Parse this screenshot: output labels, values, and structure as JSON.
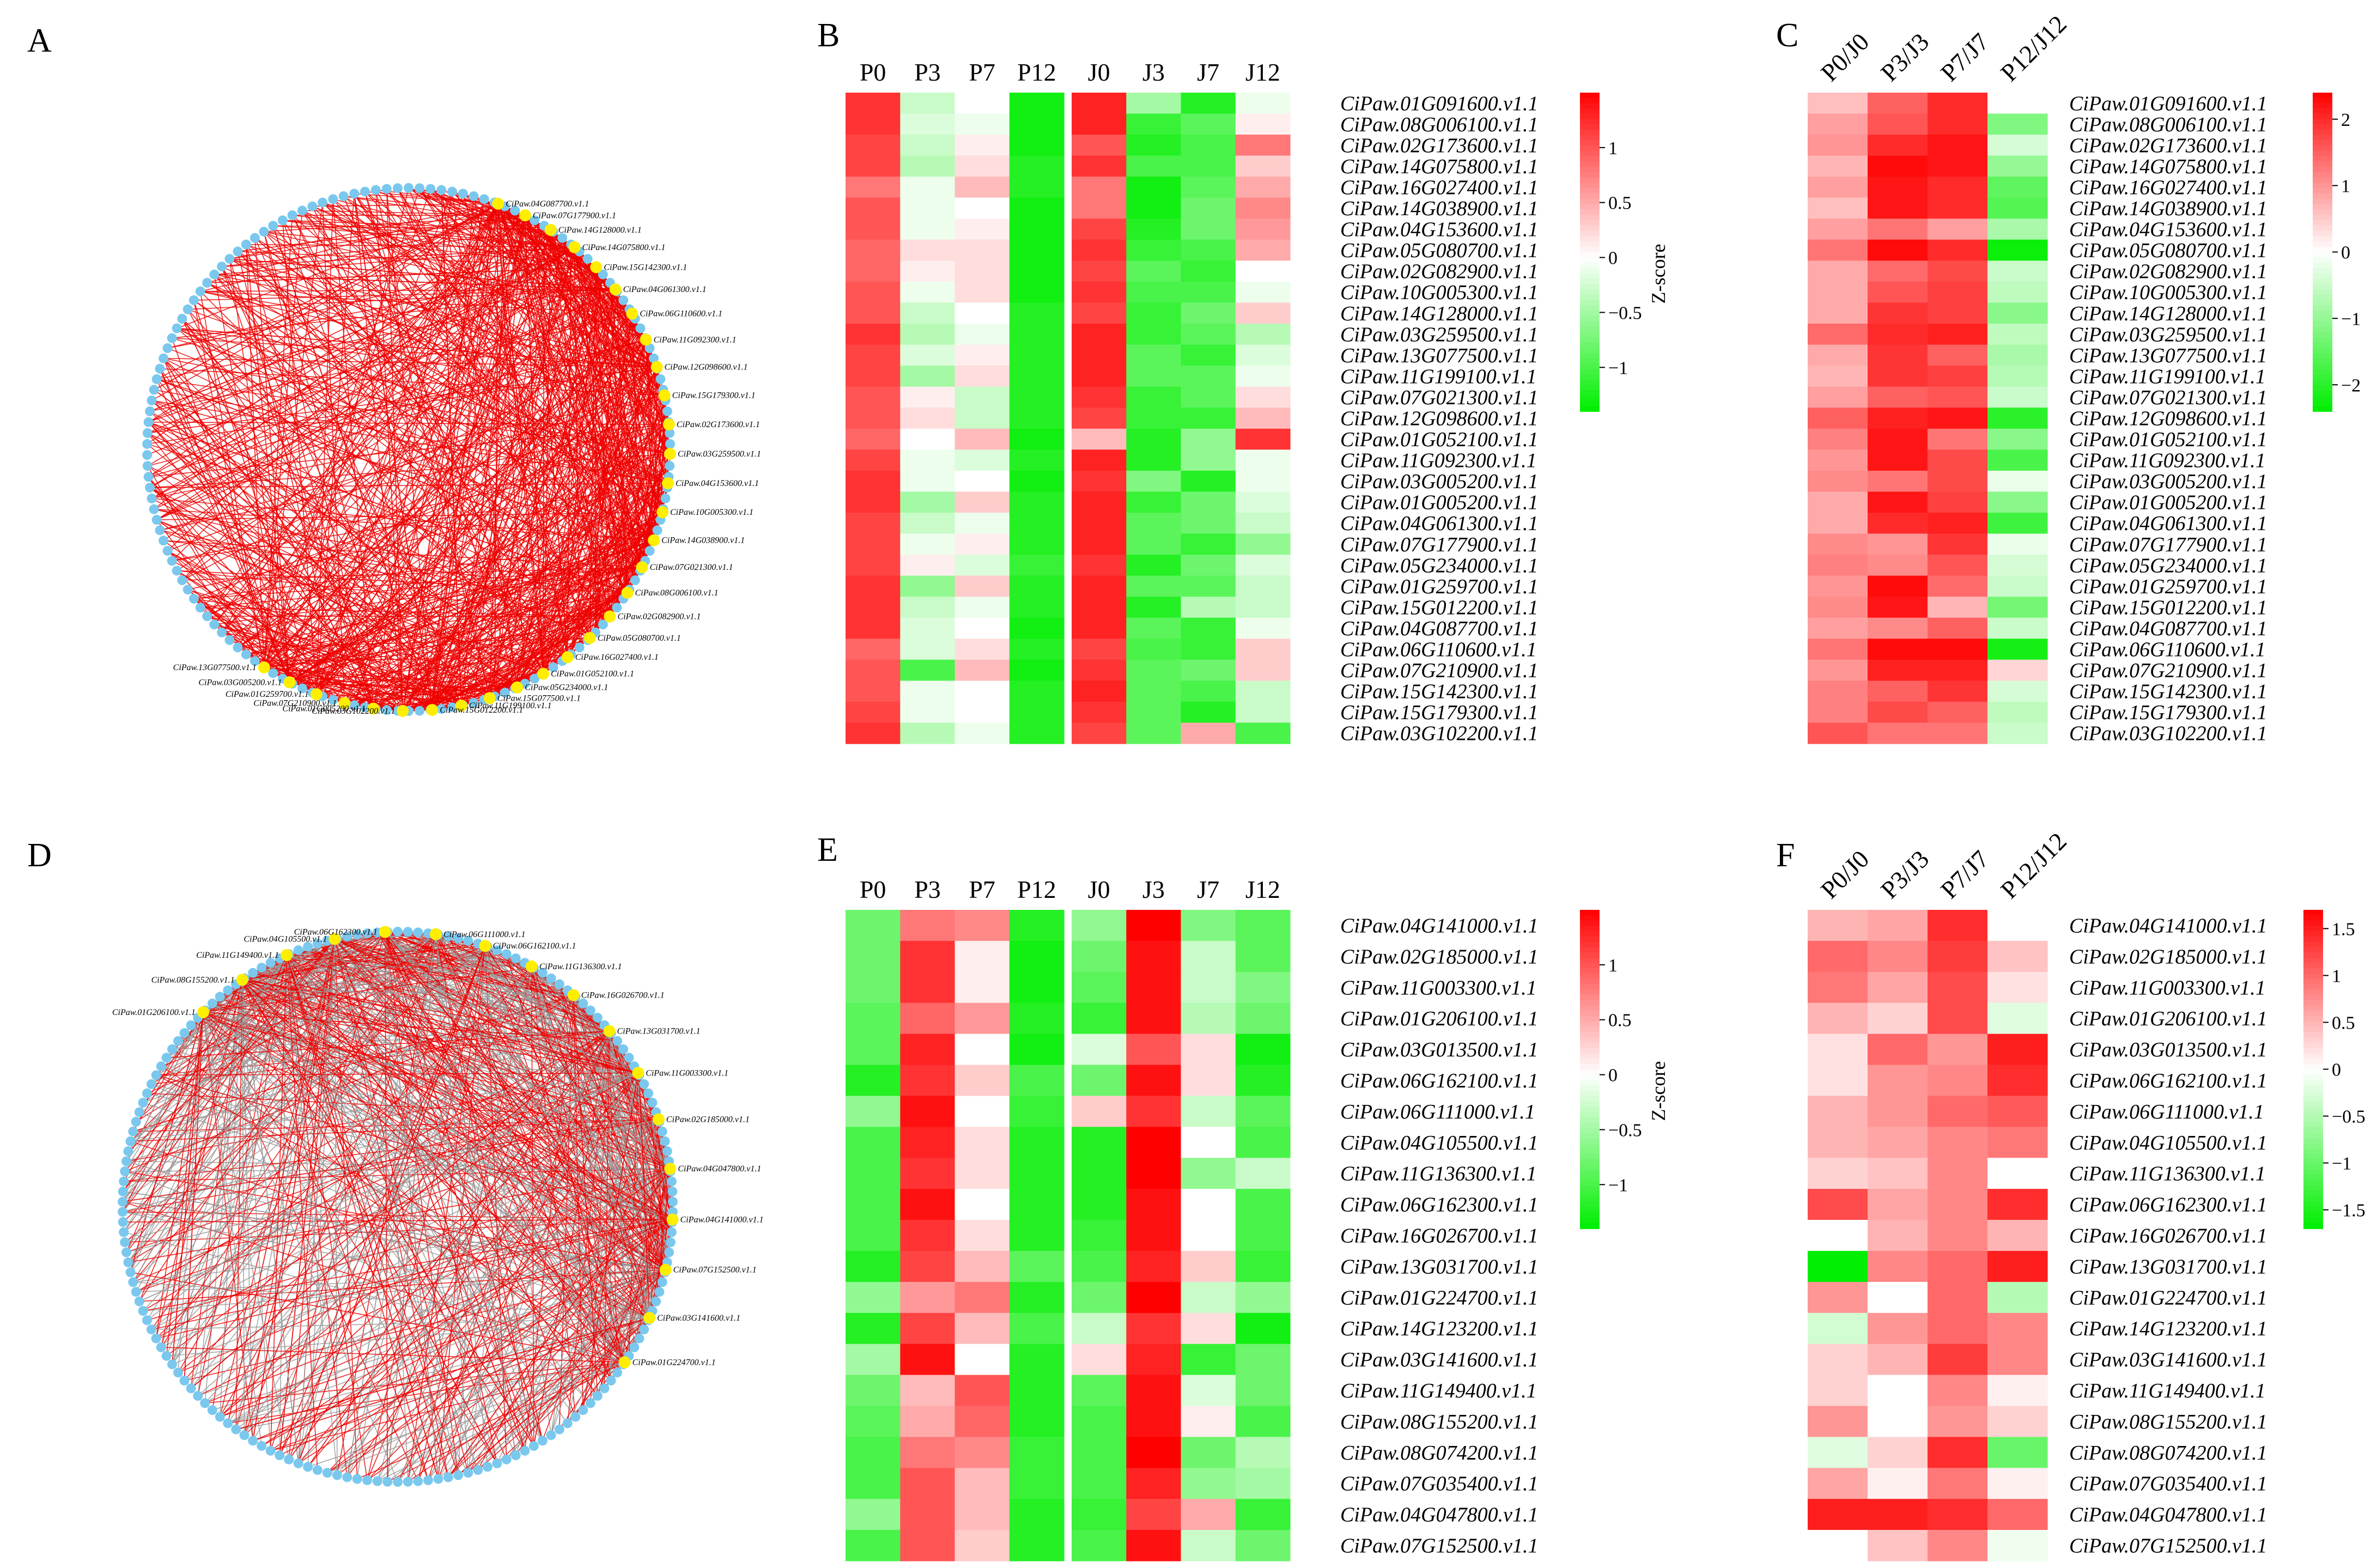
{
  "panels": {
    "A": "A",
    "B": "B",
    "C": "C",
    "D": "D",
    "E": "E",
    "F": "F"
  },
  "colors": {
    "low": "#00ee00",
    "mid": "#ffffff",
    "high": "#ff0000",
    "node": "#7ac8ee",
    "hub": "#ffee00",
    "edge_red": "#ee0000",
    "edge_gray": "#999999"
  },
  "network_A": {
    "labels": [
      "CiPaw.04G087700.v1.1",
      "CiPaw.07G177900.v1.1",
      "CiPaw.14G128000.v1.1",
      "CiPaw.14G075800.v1.1",
      "CiPaw.15G142300.v1.1",
      "CiPaw.04G061300.v1.1",
      "CiPaw.06G110600.v1.1",
      "CiPaw.11G092300.v1.1",
      "CiPaw.12G098600.v1.1",
      "CiPaw.15G179300.v1.1",
      "CiPaw.02G173600.v1.1",
      "CiPaw.03G259500.v1.1",
      "CiPaw.04G153600.v1.1",
      "CiPaw.10G005300.v1.1",
      "CiPaw.14G038900.v1.1",
      "CiPaw.07G021300.v1.1",
      "CiPaw.08G006100.v1.1",
      "CiPaw.02G082900.v1.1",
      "CiPaw.05G080700.v1.1",
      "CiPaw.16G027400.v1.1",
      "CiPaw.01G052100.v1.1",
      "CiPaw.05G234000.v1.1",
      "CiPaw.15G077500.v1.1",
      "CiPaw.11G199100.v1.1",
      "CiPaw.15G012200.v1.1",
      "CiPaw.03G102200.v1.1",
      "CiPaw.01G005200.v1.1",
      "CiPaw.07G210900.v1.1",
      "CiPaw.01G259700.v1.1",
      "CiPaw.03G005200.v1.1",
      "CiPaw.13G077500.v1.1"
    ]
  },
  "network_D": {
    "labels": [
      "CiPaw.01G206100.v1.1",
      "CiPaw.08G155200.v1.1",
      "CiPaw.11G149400.v1.1",
      "CiPaw.04G105500.v1.1",
      "CiPaw.06G162300.v1.1",
      "CiPaw.06G111000.v1.1",
      "CiPaw.06G162100.v1.1",
      "CiPaw.11G136300.v1.1",
      "CiPaw.16G026700.v1.1",
      "CiPaw.13G031700.v1.1",
      "CiPaw.11G003300.v1.1",
      "CiPaw.02G185000.v1.1",
      "CiPaw.04G047800.v1.1",
      "CiPaw.04G141000.v1.1",
      "CiPaw.07G152500.v1.1",
      "CiPaw.03G141600.v1.1",
      "CiPaw.01G224700.v1.1"
    ]
  },
  "chart_data": [
    {
      "panel": "B",
      "type": "heatmap",
      "columns": [
        "P0",
        "P3",
        "P7",
        "P12",
        "J0",
        "J3",
        "J7",
        "J12"
      ],
      "rows": [
        "CiPaw.01G091600.v1.1",
        "CiPaw.08G006100.v1.1",
        "CiPaw.02G173600.v1.1",
        "CiPaw.14G075800.v1.1",
        "CiPaw.16G027400.v1.1",
        "CiPaw.14G038900.v1.1",
        "CiPaw.04G153600.v1.1",
        "CiPaw.05G080700.v1.1",
        "CiPaw.02G082900.v1.1",
        "CiPaw.10G005300.v1.1",
        "CiPaw.14G128000.v1.1",
        "CiPaw.03G259500.v1.1",
        "CiPaw.13G077500.v1.1",
        "CiPaw.11G199100.v1.1",
        "CiPaw.07G021300.v1.1",
        "CiPaw.12G098600.v1.1",
        "CiPaw.01G052100.v1.1",
        "CiPaw.11G092300.v1.1",
        "CiPaw.03G005200.v1.1",
        "CiPaw.01G005200.v1.1",
        "CiPaw.04G061300.v1.1",
        "CiPaw.07G177900.v1.1",
        "CiPaw.05G234000.v1.1",
        "CiPaw.01G259700.v1.1",
        "CiPaw.15G012200.v1.1",
        "CiPaw.04G087700.v1.1",
        "CiPaw.06G110600.v1.1",
        "CiPaw.07G210900.v1.1",
        "CiPaw.15G142300.v1.1",
        "CiPaw.15G179300.v1.1",
        "CiPaw.03G102200.v1.1"
      ],
      "values": [
        [
          1.2,
          -0.3,
          0.0,
          -1.3,
          1.3,
          -0.5,
          -1.2,
          -0.1
        ],
        [
          1.2,
          -0.2,
          -0.1,
          -1.3,
          1.3,
          -1.1,
          -0.9,
          0.1
        ],
        [
          1.1,
          -0.3,
          0.1,
          -1.3,
          1.0,
          -1.2,
          -1.0,
          0.8
        ],
        [
          1.1,
          -0.4,
          0.2,
          -1.2,
          1.2,
          -1.0,
          -1.0,
          0.3
        ],
        [
          0.8,
          -0.1,
          0.4,
          -1.2,
          0.8,
          -1.3,
          -0.9,
          0.5
        ],
        [
          1.0,
          -0.1,
          0.0,
          -1.3,
          0.8,
          -1.3,
          -0.8,
          0.7
        ],
        [
          1.0,
          -0.1,
          0.1,
          -1.3,
          1.1,
          -1.2,
          -0.8,
          0.6
        ],
        [
          0.9,
          0.2,
          0.2,
          -1.3,
          1.2,
          -1.1,
          -1.0,
          0.5
        ],
        [
          0.9,
          0.1,
          0.2,
          -1.3,
          1.1,
          -0.9,
          -1.1,
          0.0
        ],
        [
          1.0,
          -0.1,
          0.2,
          -1.3,
          1.2,
          -1.0,
          -1.0,
          -0.1
        ],
        [
          1.0,
          -0.3,
          0.0,
          -1.2,
          1.1,
          -1.1,
          -0.8,
          0.3
        ],
        [
          1.2,
          -0.4,
          -0.1,
          -1.2,
          1.3,
          -1.1,
          -0.9,
          -0.4
        ],
        [
          1.1,
          -0.2,
          0.1,
          -1.2,
          1.3,
          -0.9,
          -1.1,
          -0.2
        ],
        [
          1.1,
          -0.5,
          0.2,
          -1.2,
          1.3,
          -0.9,
          -0.9,
          -0.1
        ],
        [
          1.0,
          0.1,
          -0.3,
          -1.2,
          1.2,
          -1.1,
          -0.9,
          0.2
        ],
        [
          1.0,
          0.2,
          -0.3,
          -1.2,
          1.1,
          -1.1,
          -1.1,
          0.4
        ],
        [
          0.9,
          0.0,
          0.4,
          -1.3,
          0.4,
          -1.2,
          -0.6,
          1.2
        ],
        [
          1.1,
          -0.1,
          -0.2,
          -1.2,
          1.3,
          -1.2,
          -0.6,
          -0.1
        ],
        [
          1.2,
          -0.1,
          0.0,
          -1.3,
          1.2,
          -0.7,
          -1.2,
          -0.1
        ],
        [
          1.2,
          -0.5,
          0.3,
          -1.2,
          1.3,
          -1.1,
          -0.8,
          -0.2
        ],
        [
          1.1,
          -0.3,
          -0.1,
          -1.2,
          1.3,
          -0.9,
          -0.8,
          -0.3
        ],
        [
          1.1,
          -0.1,
          0.1,
          -1.2,
          1.3,
          -0.9,
          -1.1,
          -0.6
        ],
        [
          1.1,
          0.1,
          -0.2,
          -1.1,
          1.2,
          -1.2,
          -0.8,
          -0.2
        ],
        [
          1.2,
          -0.6,
          0.3,
          -1.2,
          1.3,
          -0.9,
          -0.9,
          -0.3
        ],
        [
          1.2,
          -0.3,
          -0.1,
          -1.2,
          1.3,
          -1.2,
          -0.4,
          -0.3
        ],
        [
          1.2,
          -0.2,
          0.0,
          -1.3,
          1.3,
          -0.9,
          -1.1,
          -0.1
        ],
        [
          0.9,
          -0.2,
          0.2,
          -1.2,
          1.1,
          -1.0,
          -1.1,
          0.3
        ],
        [
          1.0,
          -1.0,
          0.4,
          -1.3,
          1.2,
          -0.9,
          -0.8,
          0.3
        ],
        [
          1.0,
          -0.1,
          0.0,
          -1.2,
          1.3,
          -0.9,
          -1.0,
          -0.3
        ],
        [
          1.1,
          -0.1,
          0.0,
          -1.2,
          1.2,
          -0.9,
          -1.2,
          -0.3
        ],
        [
          1.2,
          -0.4,
          -0.1,
          -1.2,
          1.1,
          -0.9,
          0.5,
          -1.0
        ]
      ],
      "colorbar": {
        "title": "Z-score",
        "ticks": [
          "1",
          "0.5",
          "0",
          "−0.5",
          "−1"
        ],
        "tick_values": [
          1,
          0.5,
          0,
          -0.5,
          -1
        ],
        "range": [
          -1.4,
          1.5
        ]
      }
    },
    {
      "panel": "C",
      "type": "heatmap",
      "columns": [
        "P0/J0",
        "P3/J3",
        "P7/J7",
        "P12/J12"
      ],
      "rows": [
        "CiPaw.01G091600.v1.1",
        "CiPaw.08G006100.v1.1",
        "CiPaw.02G173600.v1.1",
        "CiPaw.14G075800.v1.1",
        "CiPaw.16G027400.v1.1",
        "CiPaw.14G038900.v1.1",
        "CiPaw.04G153600.v1.1",
        "CiPaw.05G080700.v1.1",
        "CiPaw.02G082900.v1.1",
        "CiPaw.10G005300.v1.1",
        "CiPaw.14G128000.v1.1",
        "CiPaw.03G259500.v1.1",
        "CiPaw.13G077500.v1.1",
        "CiPaw.11G199100.v1.1",
        "CiPaw.07G021300.v1.1",
        "CiPaw.12G098600.v1.1",
        "CiPaw.01G052100.v1.1",
        "CiPaw.11G092300.v1.1",
        "CiPaw.03G005200.v1.1",
        "CiPaw.01G005200.v1.1",
        "CiPaw.04G061300.v1.1",
        "CiPaw.07G177900.v1.1",
        "CiPaw.05G234000.v1.1",
        "CiPaw.01G259700.v1.1",
        "CiPaw.15G012200.v1.1",
        "CiPaw.04G087700.v1.1",
        "CiPaw.06G110600.v1.1",
        "CiPaw.07G210900.v1.1",
        "CiPaw.15G142300.v1.1",
        "CiPaw.15G179300.v1.1",
        "CiPaw.03G102200.v1.1"
      ],
      "values": [
        [
          0.6,
          1.5,
          2.0,
          0.0
        ],
        [
          0.9,
          1.6,
          2.0,
          -1.2
        ],
        [
          1.0,
          2.0,
          2.2,
          -0.4
        ],
        [
          0.7,
          2.3,
          2.2,
          -1.0
        ],
        [
          0.9,
          2.2,
          2.0,
          -1.5
        ],
        [
          0.6,
          2.2,
          2.0,
          -1.6
        ],
        [
          0.9,
          1.3,
          0.9,
          -0.8
        ],
        [
          1.3,
          2.3,
          2.0,
          -2.3
        ],
        [
          0.8,
          1.4,
          1.7,
          -0.5
        ],
        [
          0.8,
          1.6,
          1.8,
          -0.6
        ],
        [
          0.8,
          1.9,
          1.8,
          -1.1
        ],
        [
          1.4,
          2.0,
          2.1,
          -0.6
        ],
        [
          0.8,
          1.9,
          1.5,
          -0.8
        ],
        [
          0.7,
          1.9,
          1.8,
          -0.7
        ],
        [
          0.9,
          1.5,
          1.6,
          -0.5
        ],
        [
          1.5,
          2.1,
          2.2,
          -2.0
        ],
        [
          1.2,
          2.2,
          1.3,
          -1.1
        ],
        [
          1.0,
          2.2,
          1.7,
          -1.7
        ],
        [
          1.1,
          1.3,
          1.7,
          -0.2
        ],
        [
          0.8,
          2.2,
          1.8,
          -1.1
        ],
        [
          0.8,
          2.0,
          2.1,
          -1.8
        ],
        [
          1.1,
          1.0,
          1.9,
          -0.2
        ],
        [
          1.2,
          1.1,
          1.6,
          -0.4
        ],
        [
          1.0,
          2.3,
          1.4,
          -0.5
        ],
        [
          1.1,
          2.2,
          0.7,
          -1.3
        ],
        [
          0.9,
          1.1,
          1.5,
          -0.5
        ],
        [
          1.3,
          2.3,
          2.3,
          -2.2
        ],
        [
          1.0,
          2.1,
          2.1,
          0.4
        ],
        [
          1.2,
          1.5,
          1.9,
          -0.4
        ],
        [
          1.2,
          1.7,
          1.5,
          -0.6
        ],
        [
          1.6,
          1.3,
          1.3,
          -0.5
        ]
      ],
      "colorbar": {
        "title": "",
        "ticks": [
          "2",
          "1",
          "0",
          "−1",
          "−2"
        ],
        "tick_values": [
          2,
          1,
          0,
          -1,
          -2
        ],
        "range": [
          -2.4,
          2.4
        ]
      }
    },
    {
      "panel": "E",
      "type": "heatmap",
      "columns": [
        "P0",
        "P3",
        "P7",
        "P12",
        "J0",
        "J3",
        "J7",
        "J12"
      ],
      "rows": [
        "CiPaw.04G141000.v1.1",
        "CiPaw.02G185000.v1.1",
        "CiPaw.11G003300.v1.1",
        "CiPaw.01G206100.v1.1",
        "CiPaw.03G013500.v1.1",
        "CiPaw.06G162100.v1.1",
        "CiPaw.06G111000.v1.1",
        "CiPaw.04G105500.v1.1",
        "CiPaw.11G136300.v1.1",
        "CiPaw.06G162300.v1.1",
        "CiPaw.16G026700.v1.1",
        "CiPaw.13G031700.v1.1",
        "CiPaw.01G224700.v1.1",
        "CiPaw.14G123200.v1.1",
        "CiPaw.03G141600.v1.1",
        "CiPaw.11G149400.v1.1",
        "CiPaw.08G155200.v1.1",
        "CiPaw.08G074200.v1.1",
        "CiPaw.07G035400.v1.1",
        "CiPaw.04G047800.v1.1",
        "CiPaw.07G152500.v1.1"
      ],
      "values": [
        [
          -0.8,
          0.8,
          0.7,
          -1.2,
          -0.6,
          1.5,
          -0.7,
          -0.9
        ],
        [
          -0.8,
          1.2,
          0.1,
          -1.3,
          -0.8,
          1.4,
          -0.3,
          -0.9
        ],
        [
          -0.8,
          1.2,
          0.1,
          -1.3,
          -0.9,
          1.4,
          -0.3,
          -0.7
        ],
        [
          -0.9,
          0.9,
          0.6,
          -1.2,
          -1.1,
          1.4,
          -0.4,
          -0.8
        ],
        [
          -0.9,
          1.3,
          0.0,
          -1.3,
          -0.2,
          1.0,
          0.2,
          -1.3
        ],
        [
          -1.2,
          1.2,
          0.3,
          -1.0,
          -0.8,
          1.4,
          0.2,
          -1.2
        ],
        [
          -0.6,
          1.4,
          0.0,
          -1.1,
          0.3,
          1.2,
          -0.3,
          -0.9
        ],
        [
          -1.0,
          1.3,
          0.2,
          -1.2,
          -1.2,
          1.5,
          0.0,
          -1.0
        ],
        [
          -1.0,
          1.2,
          0.2,
          -1.2,
          -1.2,
          1.5,
          -0.6,
          -0.3
        ],
        [
          -1.0,
          1.4,
          0.0,
          -1.2,
          -1.2,
          1.4,
          0.0,
          -1.0
        ],
        [
          -1.0,
          1.2,
          0.2,
          -1.2,
          -1.1,
          1.4,
          0.0,
          -1.0
        ],
        [
          -1.2,
          1.1,
          0.4,
          -0.9,
          -1.0,
          1.3,
          0.3,
          -1.1
        ],
        [
          -0.6,
          0.6,
          0.8,
          -1.2,
          -0.8,
          1.5,
          -0.3,
          -0.6
        ],
        [
          -1.2,
          1.1,
          0.4,
          -1.0,
          -0.3,
          1.2,
          0.2,
          -1.3
        ],
        [
          -0.5,
          1.4,
          0.0,
          -1.2,
          0.2,
          1.3,
          -1.1,
          -0.8
        ],
        [
          -0.8,
          0.4,
          1.0,
          -1.2,
          -0.9,
          1.4,
          -0.2,
          -0.8
        ],
        [
          -0.9,
          0.5,
          0.9,
          -1.2,
          -1.0,
          1.4,
          0.1,
          -1.0
        ],
        [
          -1.0,
          0.8,
          0.7,
          -1.1,
          -1.0,
          1.5,
          -0.8,
          -0.4
        ],
        [
          -1.0,
          1.0,
          0.4,
          -1.1,
          -1.0,
          1.3,
          -0.6,
          -0.5
        ],
        [
          -0.6,
          1.0,
          0.4,
          -1.2,
          -1.1,
          1.1,
          0.5,
          -1.1
        ],
        [
          -1.0,
          1.0,
          0.3,
          -1.2,
          -1.0,
          1.4,
          -0.3,
          -0.8
        ]
      ],
      "colorbar": {
        "title": "Z-score",
        "ticks": [
          "1",
          "0.5",
          "0",
          "−0.5",
          "−1"
        ],
        "tick_values": [
          1,
          0.5,
          0,
          -0.5,
          -1
        ],
        "range": [
          -1.4,
          1.5
        ]
      }
    },
    {
      "panel": "F",
      "type": "heatmap",
      "columns": [
        "P0/J0",
        "P3/J3",
        "P7/J7",
        "P12/J12"
      ],
      "rows": [
        "CiPaw.04G141000.v1.1",
        "CiPaw.02G185000.v1.1",
        "CiPaw.11G003300.v1.1",
        "CiPaw.01G206100.v1.1",
        "CiPaw.03G013500.v1.1",
        "CiPaw.06G162100.v1.1",
        "CiPaw.06G111000.v1.1",
        "CiPaw.04G105500.v1.1",
        "CiPaw.11G136300.v1.1",
        "CiPaw.06G162300.v1.1",
        "CiPaw.16G026700.v1.1",
        "CiPaw.13G031700.v1.1",
        "CiPaw.01G224700.v1.1",
        "CiPaw.14G123200.v1.1",
        "CiPaw.03G141600.v1.1",
        "CiPaw.11G149400.v1.1",
        "CiPaw.08G155200.v1.1",
        "CiPaw.08G074200.v1.1",
        "CiPaw.07G035400.v1.1",
        "CiPaw.04G047800.v1.1",
        "CiPaw.07G152500.v1.1"
      ],
      "values": [
        [
          0.5,
          0.6,
          1.4,
          0.0
        ],
        [
          1.0,
          0.8,
          1.3,
          0.4
        ],
        [
          0.9,
          0.6,
          1.2,
          0.2
        ],
        [
          0.5,
          0.3,
          1.2,
          -0.2
        ],
        [
          0.2,
          1.0,
          0.7,
          1.5
        ],
        [
          0.2,
          0.7,
          0.8,
          1.4
        ],
        [
          0.5,
          0.7,
          1.0,
          1.1
        ],
        [
          0.5,
          0.6,
          0.8,
          0.9
        ],
        [
          0.3,
          0.4,
          0.8,
          0.0
        ],
        [
          1.2,
          0.6,
          0.8,
          1.4
        ],
        [
          0.0,
          0.5,
          0.8,
          0.5
        ],
        [
          -1.7,
          0.8,
          1.0,
          1.5
        ],
        [
          0.7,
          0.0,
          1.0,
          -0.5
        ],
        [
          -0.3,
          0.7,
          1.0,
          0.8
        ],
        [
          0.3,
          0.5,
          1.3,
          0.8
        ],
        [
          0.3,
          0.0,
          0.8,
          0.1
        ],
        [
          0.7,
          0.0,
          0.7,
          0.3
        ],
        [
          -0.2,
          0.3,
          1.4,
          -1.0
        ],
        [
          0.6,
          0.1,
          0.9,
          0.1
        ],
        [
          1.5,
          1.5,
          1.4,
          1.0
        ],
        [
          0.0,
          0.4,
          0.8,
          -0.1
        ]
      ],
      "colorbar": {
        "title": "",
        "ticks": [
          "1.5",
          "1",
          "0.5",
          "0",
          "−0.5",
          "−1",
          "−1.5"
        ],
        "tick_values": [
          1.5,
          1,
          0.5,
          0,
          -0.5,
          -1,
          -1.5
        ],
        "range": [
          -1.7,
          1.7
        ]
      }
    }
  ]
}
